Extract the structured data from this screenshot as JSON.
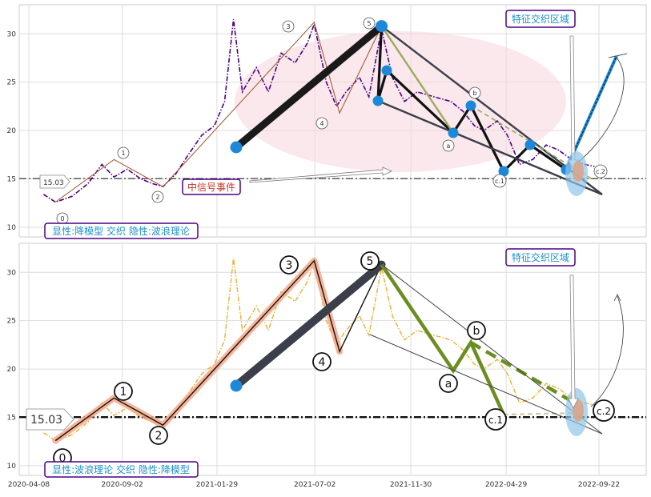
{
  "chart_data": [
    {
      "type": "line",
      "panel": "top",
      "ylim": [
        9,
        33
      ],
      "yticks": [
        10,
        15,
        20,
        25,
        30
      ],
      "grid": true,
      "price_series": [
        [
          "2020-05-01",
          13.4
        ],
        [
          "2020-05-20",
          12.6
        ],
        [
          "2020-06-15",
          13.2
        ],
        [
          "2020-07-10",
          14.5
        ],
        [
          "2020-08-01",
          16.5
        ],
        [
          "2020-08-20",
          15.2
        ],
        [
          "2020-09-10",
          16.0
        ],
        [
          "2020-10-01",
          15.0
        ],
        [
          "2020-10-20",
          14.5
        ],
        [
          "2020-11-05",
          14.2
        ],
        [
          "2020-11-25",
          15.5
        ],
        [
          "2020-12-15",
          17.5
        ],
        [
          "2021-01-05",
          19.5
        ],
        [
          "2021-01-25",
          20.5
        ],
        [
          "2021-02-10",
          23.0
        ],
        [
          "2021-02-24",
          31.5
        ],
        [
          "2021-03-10",
          24.0
        ],
        [
          "2021-04-01",
          26.5
        ],
        [
          "2021-04-20",
          24.0
        ],
        [
          "2021-05-10",
          28.0
        ],
        [
          "2021-06-01",
          27.0
        ],
        [
          "2021-06-20",
          29.0
        ],
        [
          "2021-07-01",
          31.0
        ],
        [
          "2021-07-20",
          25.0
        ],
        [
          "2021-08-05",
          22.5
        ],
        [
          "2021-08-20",
          24.0
        ],
        [
          "2021-09-10",
          25.5
        ],
        [
          "2021-09-25",
          23.5
        ],
        [
          "2021-10-15",
          30.5
        ],
        [
          "2021-11-01",
          25.5
        ],
        [
          "2021-11-20",
          23.0
        ],
        [
          "2021-12-10",
          24.0
        ],
        [
          "2022-01-05",
          23.5
        ],
        [
          "2022-02-01",
          23.0
        ],
        [
          "2022-02-20",
          22.0
        ],
        [
          "2022-03-10",
          20.5
        ],
        [
          "2022-03-25",
          20.0
        ],
        [
          "2022-04-15",
          21.0
        ],
        [
          "2022-05-01",
          19.5
        ],
        [
          "2022-05-20",
          16.5
        ],
        [
          "2022-06-10",
          17.0
        ],
        [
          "2022-07-01",
          18.5
        ],
        [
          "2022-07-20",
          18.0
        ],
        [
          "2022-08-10",
          17.0
        ],
        [
          "2022-08-30",
          16.5
        ],
        [
          "2022-09-15",
          16.3
        ]
      ],
      "wave_points": [
        {
          "label": "0",
          "x": "2020-05-20",
          "y": 12.6
        },
        {
          "label": "1",
          "x": "2020-08-20",
          "y": 17.0
        },
        {
          "label": "2",
          "x": "2020-11-05",
          "y": 14.2
        },
        {
          "label": "3",
          "x": "2021-07-01",
          "y": 31.2
        },
        {
          "label": "4",
          "x": "2021-08-10",
          "y": 21.8
        },
        {
          "label": "5",
          "x": "2021-10-15",
          "y": 30.8
        },
        {
          "label": "a",
          "x": "2022-03-15",
          "y": 20.3
        },
        {
          "label": "b",
          "x": "2022-04-15",
          "y": 23.0
        },
        {
          "label": "c.1",
          "x": "2022-05-15",
          "y": 16.0
        },
        {
          "label": "c.2",
          "x": "2022-09-20",
          "y": 15.2
        }
      ],
      "hline": 15.03,
      "hline_label": "15.03",
      "annotations": [
        "中信号事件",
        "特征交织区域",
        "显性:降模型 交织 隐性:波浪理论"
      ]
    },
    {
      "type": "line",
      "panel": "bottom",
      "ylim": [
        9,
        33
      ],
      "yticks": [
        10,
        15,
        20,
        25,
        30
      ],
      "grid": true,
      "wave_points": [
        {
          "label": "0",
          "x": "2020-05-20",
          "y": 12.6
        },
        {
          "label": "1",
          "x": "2020-08-20",
          "y": 17.0
        },
        {
          "label": "2",
          "x": "2020-11-05",
          "y": 14.2
        },
        {
          "label": "3",
          "x": "2021-07-01",
          "y": 31.2
        },
        {
          "label": "4",
          "x": "2021-08-10",
          "y": 21.8
        },
        {
          "label": "5",
          "x": "2021-10-15",
          "y": 30.8
        },
        {
          "label": "a",
          "x": "2022-03-15",
          "y": 20.3
        },
        {
          "label": "b",
          "x": "2022-04-15",
          "y": 23.0
        },
        {
          "label": "c.1",
          "x": "2022-05-15",
          "y": 16.0
        },
        {
          "label": "c.2",
          "x": "2022-09-20",
          "y": 15.2
        }
      ],
      "hline": 15.03,
      "hline_label": "15.03",
      "annotations": [
        "特征交织区域",
        "显性:波浪理论 交织 隐性:降模型"
      ],
      "xticks": [
        "2020-04-08",
        "2020-09-02",
        "2021-01-29",
        "2021-07-02",
        "2021-11-30",
        "2022-04-29",
        "2022-09-22"
      ]
    }
  ],
  "top_labels": {
    "event": "中信号事件",
    "zone": "特征交织区域",
    "model": "显性:降模型 交织 隐性:波浪理论",
    "level": "15.03"
  },
  "bottom_labels": {
    "zone": "特征交织区域",
    "model": "显性:波浪理论 交织 隐性:降模型",
    "level": "15.03"
  },
  "colors": {
    "top_price": "#4b0082",
    "bottom_price": "#e8b030",
    "thick_wave": "#1a1a1a",
    "pink_wave": "#f4a88a",
    "green_wave": "#6b8e23",
    "node": "#1e88d8",
    "label_border": "#4b0082",
    "label_text": "#1e90c8",
    "event_text": "#c0392b",
    "ellipse": "#f6d5dc"
  }
}
